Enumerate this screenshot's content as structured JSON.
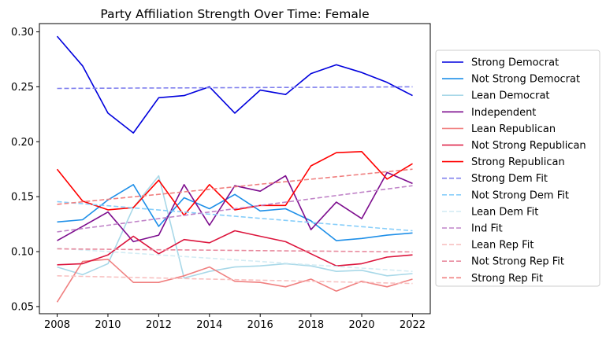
{
  "chart_data": {
    "type": "line",
    "title": "Party Affiliation Strength Over Time: Female",
    "xlabel": "",
    "ylabel": "",
    "x": [
      2008,
      2009,
      2010,
      2011,
      2012,
      2013,
      2014,
      2015,
      2016,
      2017,
      2018,
      2019,
      2020,
      2021,
      2022
    ],
    "xticks": [
      2008,
      2010,
      2012,
      2014,
      2016,
      2018,
      2020,
      2022
    ],
    "yticks": [
      0.05,
      0.1,
      0.15,
      0.2,
      0.25,
      0.3
    ],
    "xlim": [
      2007.3,
      2022.7
    ],
    "ylim": [
      0.0435,
      0.3075
    ],
    "grid": false,
    "legend_position": "outside-right",
    "series": [
      {
        "name": "Strong Democrat",
        "color": "#0000dd",
        "style": "solid",
        "values": [
          0.296,
          0.269,
          0.226,
          0.208,
          0.24,
          0.242,
          0.25,
          0.226,
          0.247,
          0.243,
          0.262,
          0.27,
          0.263,
          0.254,
          0.242
        ]
      },
      {
        "name": "Not Strong Democrat",
        "color": "#1e8fe8",
        "style": "solid",
        "values": [
          0.127,
          0.129,
          0.147,
          0.161,
          0.123,
          0.149,
          0.139,
          0.152,
          0.137,
          0.139,
          0.128,
          0.11,
          0.112,
          0.115,
          0.117
        ]
      },
      {
        "name": "Lean Democrat",
        "color": "#a8d8e8",
        "style": "solid",
        "values": [
          0.086,
          0.079,
          0.089,
          0.14,
          0.169,
          0.076,
          0.082,
          0.086,
          0.087,
          0.089,
          0.087,
          0.082,
          0.083,
          0.078,
          0.08
        ]
      },
      {
        "name": "Independent",
        "color": "#7d0d8e",
        "style": "solid",
        "values": [
          0.11,
          0.123,
          0.136,
          0.109,
          0.115,
          0.161,
          0.124,
          0.16,
          0.155,
          0.169,
          0.12,
          0.145,
          0.13,
          0.172,
          0.162
        ]
      },
      {
        "name": "Lean Republican",
        "color": "#f08080",
        "style": "solid",
        "values": [
          0.054,
          0.091,
          0.093,
          0.072,
          0.072,
          0.078,
          0.086,
          0.073,
          0.072,
          0.068,
          0.075,
          0.064,
          0.073,
          0.068,
          0.075
        ]
      },
      {
        "name": "Not Strong Republican",
        "color": "#dc143c",
        "style": "solid",
        "values": [
          0.088,
          0.089,
          0.097,
          0.114,
          0.098,
          0.111,
          0.108,
          0.119,
          0.114,
          0.109,
          0.098,
          0.087,
          0.089,
          0.095,
          0.097
        ]
      },
      {
        "name": "Strong Republican",
        "color": "#ff0000",
        "style": "solid",
        "values": [
          0.175,
          0.146,
          0.138,
          0.14,
          0.165,
          0.133,
          0.161,
          0.138,
          0.142,
          0.142,
          0.178,
          0.19,
          0.191,
          0.166,
          0.18
        ]
      },
      {
        "name": "Strong Dem Fit",
        "color": "#8080ee",
        "style": "dashed",
        "values": [
          0.2485,
          0.2486,
          0.2487,
          0.2488,
          0.2489,
          0.249,
          0.2491,
          0.2492,
          0.2493,
          0.2494,
          0.2495,
          0.2496,
          0.2497,
          0.2498,
          0.25
        ]
      },
      {
        "name": "Not Strong Dem Fit",
        "color": "#87cefa",
        "style": "dashed",
        "values": [
          0.1455,
          0.1436,
          0.1417,
          0.1398,
          0.1379,
          0.136,
          0.1341,
          0.1322,
          0.1303,
          0.1284,
          0.1265,
          0.1246,
          0.1227,
          0.1208,
          0.119
        ]
      },
      {
        "name": "Lean Dem Fit",
        "color": "#d4ecf4",
        "style": "dashed",
        "values": [
          0.103,
          0.1015,
          0.1,
          0.0985,
          0.097,
          0.0955,
          0.094,
          0.0925,
          0.091,
          0.0895,
          0.088,
          0.0865,
          0.085,
          0.0835,
          0.082
        ]
      },
      {
        "name": "Ind Fit",
        "color": "#c084c8",
        "style": "dashed",
        "values": [
          0.118,
          0.121,
          0.124,
          0.127,
          0.13,
          0.133,
          0.136,
          0.139,
          0.142,
          0.145,
          0.148,
          0.151,
          0.154,
          0.157,
          0.16
        ]
      },
      {
        "name": "Lean Rep Fit",
        "color": "#f8c0c0",
        "style": "dashed",
        "values": [
          0.078,
          0.0775,
          0.077,
          0.0765,
          0.076,
          0.0755,
          0.075,
          0.0745,
          0.074,
          0.0735,
          0.073,
          0.0725,
          0.072,
          0.0715,
          0.071
        ]
      },
      {
        "name": "Not Strong Rep Fit",
        "color": "#e88a9e",
        "style": "dashed",
        "values": [
          0.1025,
          0.1023,
          0.1021,
          0.1019,
          0.1017,
          0.1015,
          0.1013,
          0.1011,
          0.1009,
          0.1007,
          0.1005,
          0.1003,
          0.1001,
          0.0999,
          0.0997
        ]
      },
      {
        "name": "Strong Rep Fit",
        "color": "#f08080",
        "style": "dashed",
        "values": [
          0.143,
          0.1453,
          0.1476,
          0.1499,
          0.1521,
          0.1544,
          0.1567,
          0.159,
          0.1613,
          0.1636,
          0.1659,
          0.1681,
          0.1704,
          0.1727,
          0.175
        ]
      }
    ]
  }
}
